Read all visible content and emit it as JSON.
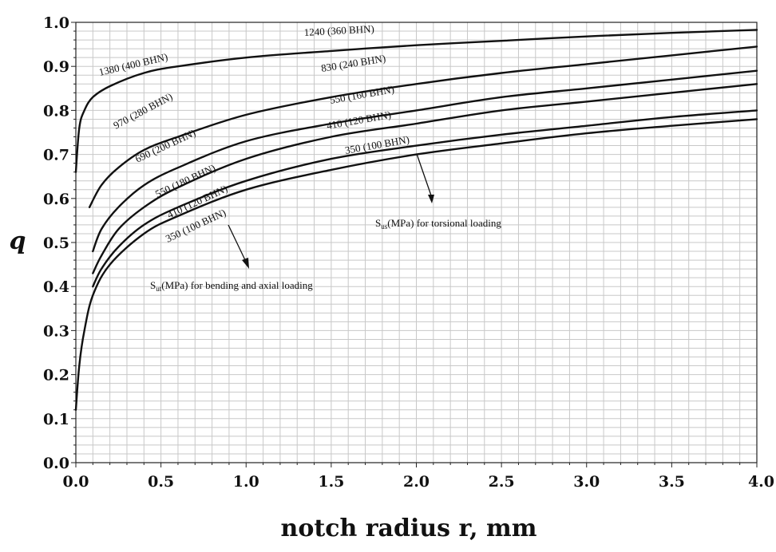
{
  "chart_data": {
    "type": "line",
    "xlabel": "notch radius r, mm",
    "ylabel": "q",
    "xlim": [
      0,
      4.0
    ],
    "ylim": [
      0,
      1.0
    ],
    "x_ticks": [
      "0.0",
      "0.5",
      "1.0",
      "1.5",
      "2.0",
      "2.5",
      "3.0",
      "3.5",
      "4.0"
    ],
    "y_ticks": [
      "0.0",
      "0.1",
      "0.2",
      "0.3",
      "0.4",
      "0.5",
      "0.6",
      "0.7",
      "0.8",
      "0.9",
      "1.0"
    ],
    "grid": true,
    "torsional_series": [
      {
        "label": "1240 (360 BHN)",
        "x": [
          0.0,
          0.02,
          0.05,
          0.1,
          0.2,
          0.4,
          0.6,
          1.0,
          1.5,
          2.0,
          2.5,
          3.0,
          3.5,
          4.0
        ],
        "y": [
          0.66,
          0.76,
          0.8,
          0.83,
          0.855,
          0.885,
          0.9,
          0.92,
          0.935,
          0.948,
          0.958,
          0.968,
          0.976,
          0.983
        ]
      },
      {
        "label": "830 (240 BHN)",
        "x": [
          0.08,
          0.15,
          0.25,
          0.4,
          0.6,
          1.0,
          1.5,
          2.0,
          2.5,
          3.0,
          3.5,
          4.0
        ],
        "y": [
          0.58,
          0.63,
          0.67,
          0.71,
          0.74,
          0.79,
          0.83,
          0.86,
          0.885,
          0.905,
          0.925,
          0.945
        ]
      },
      {
        "label": "550 (160 BHN)",
        "x": [
          0.1,
          0.15,
          0.25,
          0.4,
          0.6,
          1.0,
          1.5,
          2.0,
          2.5,
          3.0,
          3.5,
          4.0
        ],
        "y": [
          0.48,
          0.53,
          0.58,
          0.63,
          0.67,
          0.73,
          0.77,
          0.8,
          0.83,
          0.85,
          0.87,
          0.89
        ]
      },
      {
        "label": "410 (120 BHN)",
        "x": [
          0.1,
          0.15,
          0.25,
          0.4,
          0.6,
          1.0,
          1.5,
          2.0,
          2.5,
          3.0,
          3.5,
          4.0
        ],
        "y": [
          0.43,
          0.47,
          0.53,
          0.58,
          0.625,
          0.69,
          0.74,
          0.77,
          0.8,
          0.82,
          0.84,
          0.86
        ]
      },
      {
        "label": "350 (100 BHN)",
        "x": [
          0.1,
          0.15,
          0.25,
          0.4,
          0.6,
          1.0,
          1.5,
          2.0,
          2.5,
          3.0,
          3.5,
          4.0
        ],
        "y": [
          0.4,
          0.44,
          0.49,
          0.54,
          0.58,
          0.64,
          0.69,
          0.72,
          0.745,
          0.765,
          0.785,
          0.8
        ]
      },
      {
        "label": "",
        "x": [
          0.0,
          0.02,
          0.05,
          0.1,
          0.2,
          0.4,
          0.6,
          1.0,
          1.5,
          2.0,
          2.5,
          3.0,
          3.5,
          4.0
        ],
        "y": [
          0.12,
          0.22,
          0.3,
          0.38,
          0.45,
          0.52,
          0.56,
          0.62,
          0.665,
          0.7,
          0.725,
          0.748,
          0.765,
          0.78
        ]
      }
    ],
    "bending_labels": [
      "1380 (400 BHN)",
      "970 (280 BHN)",
      "690 (200 BHN)",
      "550 (180 BHN)",
      "410 (120 BHN)",
      "350 (100 BHN)"
    ],
    "torsional_note": {
      "prefix": "S",
      "sub": "us",
      "suffix": "(MPa) for torsional loading"
    },
    "bending_note": {
      "prefix": "S",
      "sub": "ut",
      "suffix": "(MPa) for bending and axial loading"
    }
  }
}
